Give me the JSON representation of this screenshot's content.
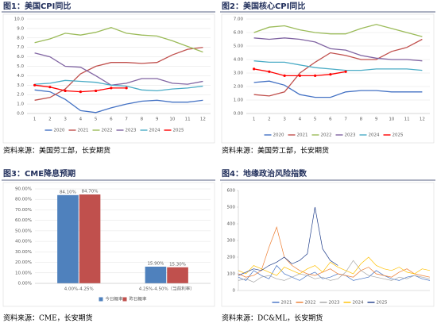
{
  "chart_data": [
    {
      "type": "line",
      "title": "图1：美国CPI同比",
      "source": "资料来源：美国劳工部，长安期货",
      "x": [
        1,
        2,
        3,
        4,
        5,
        6,
        7,
        8,
        9,
        10,
        11,
        12
      ],
      "xlim": [
        0.5,
        12.5
      ],
      "xticks": [
        1,
        2,
        3,
        4,
        5,
        6,
        7,
        8,
        9,
        10,
        11,
        12
      ],
      "ylim": [
        0,
        10
      ],
      "yticks": [
        {
          "value": 0,
          "label": "0.0"
        },
        {
          "value": 1,
          "label": "1.0"
        },
        {
          "value": 2,
          "label": "2.0"
        },
        {
          "value": 3,
          "label": "3.0"
        },
        {
          "value": 4,
          "label": "4.0"
        },
        {
          "value": 5,
          "label": "5.0"
        },
        {
          "value": 6,
          "label": "6.0"
        },
        {
          "value": 7,
          "label": "7.0"
        },
        {
          "value": 8,
          "label": "8.0"
        },
        {
          "value": 9,
          "label": "9.0"
        },
        {
          "value": 10,
          "label": "10.0"
        }
      ],
      "grid": true,
      "series": [
        {
          "name": "2020",
          "color": "#4472c4",
          "values": [
            2.5,
            2.3,
            1.5,
            0.3,
            0.1,
            0.6,
            1.0,
            1.3,
            1.4,
            1.2,
            1.2,
            1.4
          ]
        },
        {
          "name": "2021",
          "color": "#c0504d",
          "values": [
            1.4,
            1.7,
            2.6,
            4.2,
            5.0,
            5.4,
            5.4,
            5.3,
            5.4,
            6.2,
            6.8,
            7.0
          ]
        },
        {
          "name": "2022",
          "color": "#9bbb59",
          "values": [
            7.5,
            7.9,
            8.5,
            8.3,
            8.6,
            9.1,
            8.5,
            8.3,
            8.2,
            7.7,
            7.1,
            6.5
          ]
        },
        {
          "name": "2023",
          "color": "#8064a2",
          "values": [
            6.4,
            6.0,
            5.0,
            4.9,
            4.0,
            3.0,
            3.2,
            3.7,
            3.7,
            3.2,
            3.1,
            3.4
          ]
        },
        {
          "name": "2024",
          "color": "#4bacc6",
          "values": [
            3.1,
            3.2,
            3.5,
            3.4,
            3.3,
            3.0,
            2.9,
            2.5,
            2.4,
            2.6,
            2.7,
            2.9
          ]
        },
        {
          "name": "2025",
          "color": "#ff0000",
          "markers": true,
          "values": [
            3.0,
            2.8,
            2.4,
            2.3,
            2.4,
            2.7,
            2.7,
            null,
            null,
            null,
            null,
            null
          ]
        }
      ]
    },
    {
      "type": "line",
      "title": "图2：美国核心CPI同比",
      "source": "资料来源：美国劳工部，长安期货",
      "x": [
        1,
        2,
        3,
        4,
        5,
        6,
        7,
        8,
        9,
        10,
        11,
        12
      ],
      "xlim": [
        0.5,
        12.5
      ],
      "xticks": [
        1,
        2,
        3,
        4,
        5,
        6,
        7,
        8,
        9,
        10,
        11,
        12
      ],
      "ylim": [
        0,
        7
      ],
      "yticks": [
        {
          "value": 0,
          "label": "0.00"
        },
        {
          "value": 1,
          "label": "1.00"
        },
        {
          "value": 2,
          "label": "2.00"
        },
        {
          "value": 3,
          "label": "3.00"
        },
        {
          "value": 4,
          "label": "4.00"
        },
        {
          "value": 5,
          "label": "5.00"
        },
        {
          "value": 6,
          "label": "6.00"
        },
        {
          "value": 7,
          "label": "7.00"
        }
      ],
      "grid": true,
      "series": [
        {
          "name": "2020",
          "color": "#4472c4",
          "values": [
            2.3,
            2.4,
            2.1,
            1.4,
            1.2,
            1.2,
            1.6,
            1.7,
            1.7,
            1.6,
            1.6,
            1.6
          ]
        },
        {
          "name": "2021",
          "color": "#c0504d",
          "values": [
            1.4,
            1.3,
            1.6,
            3.0,
            3.8,
            4.5,
            4.3,
            4.0,
            4.0,
            4.6,
            4.9,
            5.5
          ]
        },
        {
          "name": "2022",
          "color": "#9bbb59",
          "values": [
            6.0,
            6.4,
            6.5,
            6.2,
            6.0,
            5.9,
            5.9,
            6.3,
            6.6,
            6.3,
            6.0,
            5.7
          ]
        },
        {
          "name": "2023",
          "color": "#8064a2",
          "values": [
            5.6,
            5.5,
            5.6,
            5.5,
            5.3,
            4.8,
            4.7,
            4.3,
            4.1,
            4.0,
            4.0,
            3.9
          ]
        },
        {
          "name": "2024",
          "color": "#4bacc6",
          "values": [
            3.9,
            3.8,
            3.8,
            3.6,
            3.4,
            3.3,
            3.2,
            3.2,
            3.3,
            3.3,
            3.3,
            3.2
          ]
        },
        {
          "name": "2025",
          "color": "#ff0000",
          "markers": true,
          "values": [
            3.3,
            3.1,
            2.8,
            2.8,
            2.8,
            2.9,
            3.1,
            null,
            null,
            null,
            null,
            null
          ]
        }
      ]
    },
    {
      "type": "bar",
      "title": "图3：CME降息预期",
      "source": "资料来源：CME，长安期货",
      "categories": [
        "4.00%-4.25%",
        "4.25%-4.50%（当前利率）"
      ],
      "ylim": [
        0,
        90
      ],
      "yticks": [
        {
          "value": 0,
          "label": "0.00%"
        },
        {
          "value": 10,
          "label": "10.00%"
        },
        {
          "value": 20,
          "label": "20.00%"
        },
        {
          "value": 30,
          "label": "30.00%"
        },
        {
          "value": 40,
          "label": "40.00%"
        },
        {
          "value": 50,
          "label": "50.00%"
        },
        {
          "value": 60,
          "label": "60.00%"
        },
        {
          "value": 70,
          "label": "70.00%"
        },
        {
          "value": 80,
          "label": "80.00%"
        },
        {
          "value": 90,
          "label": "90.00%"
        }
      ],
      "grid": true,
      "series": [
        {
          "name": "今日概率",
          "color": "#4f81bd",
          "values": [
            84.1,
            15.9
          ],
          "value_labels": [
            "84.10%",
            "15.90%"
          ]
        },
        {
          "name": "昨日概率",
          "color": "#c0504d",
          "values": [
            84.7,
            15.3
          ],
          "value_labels": [
            "84.70%",
            "15.30%"
          ]
        }
      ]
    },
    {
      "type": "line",
      "title": "图4：地缘政治风险指数",
      "source": "资料来源：DC&ML，长安期货",
      "ylim": [
        0,
        600
      ],
      "yticks": [
        0,
        100,
        200,
        300,
        400,
        500,
        600
      ],
      "grid": false,
      "series": [
        {
          "name": "2021",
          "color": "#4472c4",
          "values": [
            80,
            60,
            120,
            90,
            70,
            150,
            100,
            80,
            60,
            90,
            110,
            70,
            80,
            100,
            90,
            60,
            70,
            80,
            120,
            90,
            70,
            60,
            80,
            90,
            70,
            60
          ]
        },
        {
          "name": "2022",
          "color": "#ed7d31",
          "values": [
            100,
            80,
            90,
            120,
            260,
            380,
            200,
            150,
            120,
            100,
            90,
            110,
            130,
            100,
            90,
            80,
            120,
            140,
            100,
            90,
            80,
            110,
            130,
            100,
            90,
            80
          ]
        },
        {
          "name": "2023",
          "color": "#a5a5a5",
          "values": [
            60,
            70,
            50,
            80,
            90,
            70,
            60,
            80,
            100,
            90,
            70,
            80,
            60,
            70,
            110,
            180,
            120,
            90,
            80,
            70,
            60,
            80,
            70,
            90,
            80,
            70
          ]
        },
        {
          "name": "2024",
          "color": "#ffc000",
          "values": [
            120,
            100,
            150,
            130,
            110,
            90,
            140,
            120,
            100,
            130,
            150,
            110,
            170,
            140,
            120,
            100,
            160,
            200,
            150,
            130,
            120,
            140,
            110,
            100,
            130,
            120
          ]
        },
        {
          "name": "2025",
          "color": "#1f3d8a",
          "values": [
            90,
            110,
            130,
            120,
            150,
            170,
            200,
            160,
            180,
            220,
            500,
            250,
            180,
            150,
            null,
            null,
            null,
            null,
            null,
            null,
            null,
            null,
            null,
            null,
            null,
            null
          ]
        }
      ]
    }
  ]
}
